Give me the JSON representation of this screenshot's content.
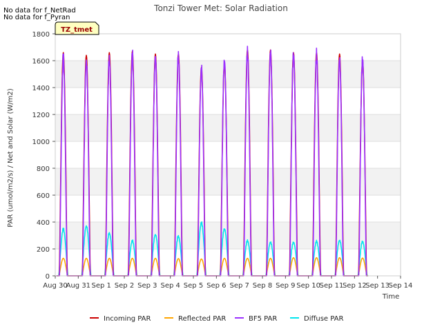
{
  "chart_data": {
    "type": "line",
    "title": "Tonzi Tower Met: Solar Radiation",
    "xlabel": "Time",
    "ylabel": "PAR (umol/m2/s) / Net and Solar (W/m2)",
    "ylim": [
      0,
      1800
    ],
    "yticks": [
      0,
      200,
      400,
      600,
      800,
      1000,
      1200,
      1400,
      1600,
      1800
    ],
    "xlim": [
      0,
      15
    ],
    "xticks": [
      "Aug 30",
      "Aug 31",
      "Sep 1",
      "Sep 2",
      "Sep 3",
      "Sep 4",
      "Sep 5",
      "Sep 6",
      "Sep 7",
      "Sep 8",
      "Sep 9",
      "Sep 10",
      "Sep 11",
      "Sep 12",
      "Sep 13",
      "Sep 14"
    ],
    "notes": [
      "No data for f_NetRad",
      "No data for f_Pyran"
    ],
    "site_badge": "TZ_tmet",
    "grid": true,
    "legend_position": "bottom",
    "series": [
      {
        "name": "Incoming PAR",
        "color": "#cc0000",
        "daily_peaks": [
          1660,
          1640,
          1660,
          1670,
          1650,
          1650,
          1550,
          1580,
          1680,
          1680,
          1660,
          1660,
          1650,
          1600
        ]
      },
      {
        "name": "Reflected PAR",
        "color": "#ffa500",
        "daily_peaks": [
          130,
          130,
          130,
          130,
          130,
          128,
          125,
          130,
          130,
          130,
          135,
          135,
          135,
          132
        ]
      },
      {
        "name": "BF5 PAR",
        "color": "#9b30ff",
        "daily_peaks": [
          1680,
          1660,
          1680,
          1700,
          1700,
          1695,
          1600,
          1675,
          1720,
          1730,
          1720,
          1695,
          1685,
          1675
        ]
      },
      {
        "name": "Diffuse PAR",
        "color": "#00e5ee",
        "daily_peaks": [
          360,
          385,
          330,
          270,
          320,
          305,
          410,
          365,
          270,
          260,
          260,
          265,
          275,
          265
        ]
      }
    ]
  }
}
